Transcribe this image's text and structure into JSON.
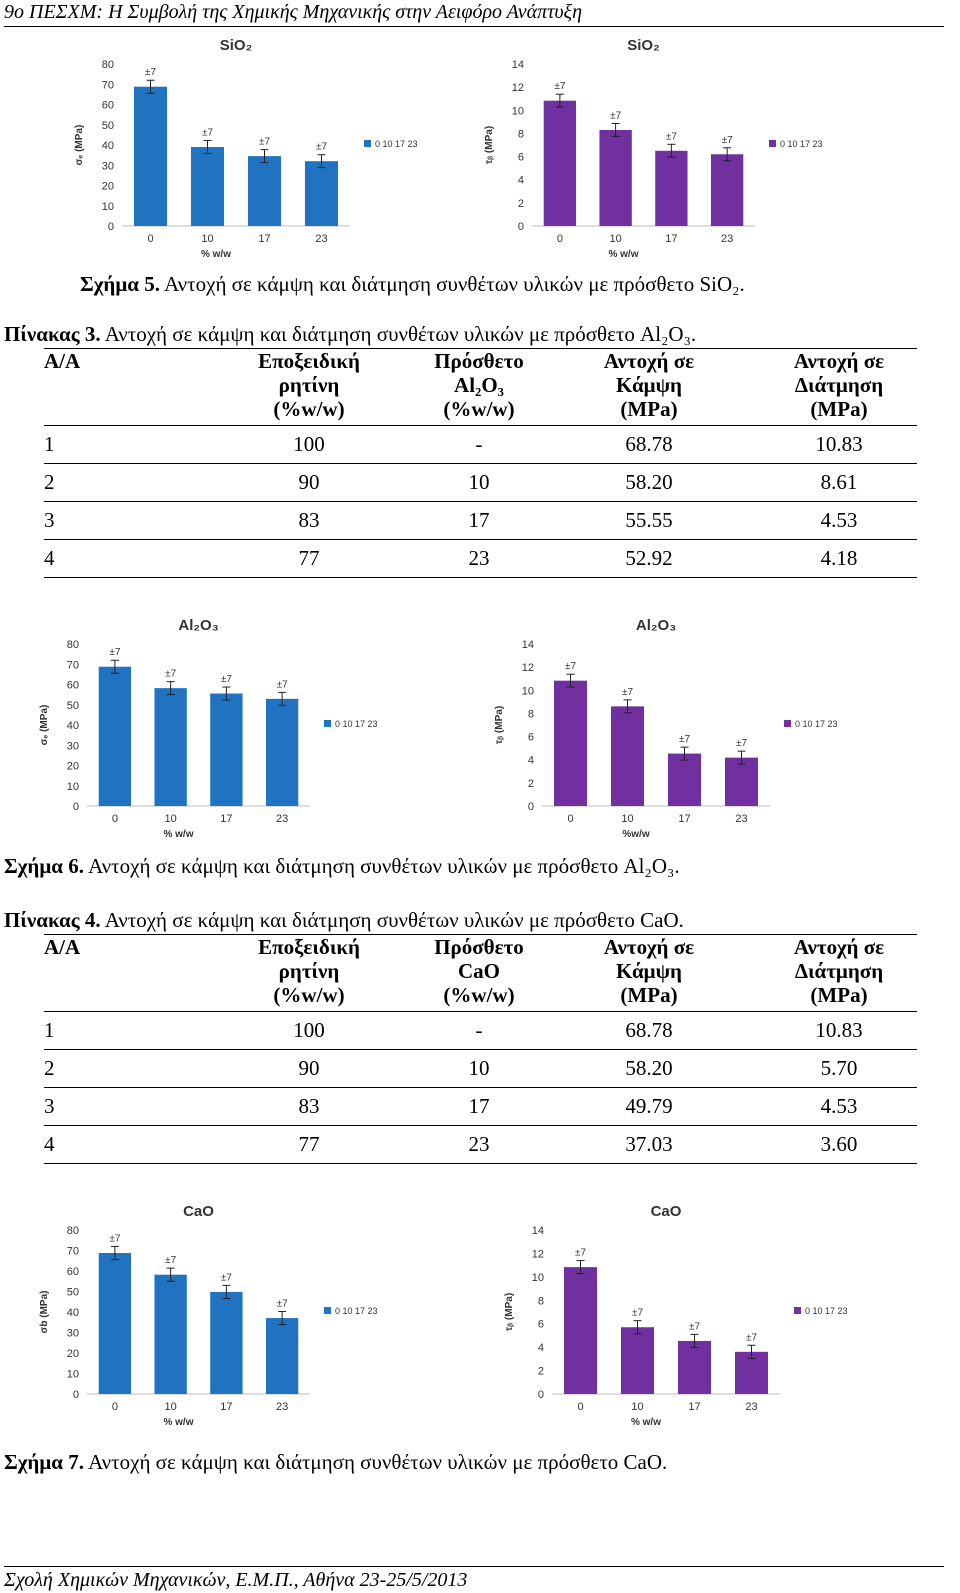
{
  "header": "9ο ΠΕΣΧΜ: Η Συμβολή της Χημικής Μηχανικής στην Αειφόρο Ανάπτυξη",
  "footer": "Σχολή Χημικών Μηχανικών, Ε.Μ.Π., Αθήνα 23-25/5/2013",
  "figures": [
    {
      "label": "Σχήμα 5.",
      "text": "Αντοχή σε κάμψη και διάτμηση συνθέτων υλικών με πρόσθετο SiO₂.",
      "charts": [
        {
          "title": "SiO₂",
          "color": "#1f73c1",
          "ylabel": "σₑ (MPa)",
          "xlabel": "% w/w",
          "legend": "0 10 17 23",
          "categories": [
            "0",
            "10",
            "17",
            "23"
          ],
          "values": [
            68.78,
            39,
            34.5,
            32
          ],
          "ylim": [
            0,
            80
          ],
          "ticks": [
            "0",
            "10",
            "20",
            "30",
            "40",
            "50",
            "60",
            "70",
            "80"
          ],
          "err_label": "±7"
        },
        {
          "title": "SiO₂",
          "color": "#7030a0",
          "ylabel": "τᵦ (MPa)",
          "xlabel": "% w/w",
          "legend": "0 10 17 23",
          "categories": [
            "0",
            "10",
            "17",
            "23"
          ],
          "values": [
            10.83,
            8.3,
            6.5,
            6.2
          ],
          "ylim": [
            0,
            14
          ],
          "ticks": [
            "0",
            "2",
            "4",
            "6",
            "8",
            "10",
            "12",
            "14"
          ],
          "err_label": "±7"
        }
      ]
    },
    {
      "label": "Σχήμα 6.",
      "text": "Αντοχή σε κάμψη και διάτμηση συνθέτων υλικών με πρόσθετο Al₂O₃.",
      "charts": [
        {
          "title": "Al₂O₃",
          "color": "#1f73c1",
          "ylabel": "σₑ (MPa)",
          "xlabel": "% w/w",
          "legend": "0 10 17 23",
          "categories": [
            "0",
            "10",
            "17",
            "23"
          ],
          "values": [
            68.78,
            58.2,
            55.55,
            52.92
          ],
          "ylim": [
            0,
            80
          ],
          "ticks": [
            "0",
            "10",
            "20",
            "30",
            "40",
            "50",
            "60",
            "70",
            "80"
          ],
          "err_label": "±7"
        },
        {
          "title": "Al₂O₃",
          "color": "#7030a0",
          "ylabel": "τᵦ (MPa)",
          "xlabel": "%w/w",
          "legend": "0 10 17 23",
          "categories": [
            "0",
            "10",
            "17",
            "23"
          ],
          "values": [
            10.83,
            8.61,
            4.53,
            4.18
          ],
          "ylim": [
            0,
            14
          ],
          "ticks": [
            "0",
            "2",
            "4",
            "6",
            "8",
            "10",
            "12",
            "14"
          ],
          "err_label": "±7"
        }
      ]
    },
    {
      "label": "Σχήμα 7.",
      "text": "Αντοχή σε κάμψη και διάτμηση συνθέτων υλικών με πρόσθετο CaO.",
      "charts": [
        {
          "title": "CaO",
          "color": "#1f73c1",
          "ylabel": "σb (MPa)",
          "xlabel": "% w/w",
          "legend": "0 10 17 23",
          "categories": [
            "0",
            "10",
            "17",
            "23"
          ],
          "values": [
            68.78,
            58.2,
            49.79,
            37.03
          ],
          "ylim": [
            0,
            80
          ],
          "ticks": [
            "0",
            "10",
            "20",
            "30",
            "40",
            "50",
            "60",
            "70",
            "80"
          ],
          "err_label": "±7"
        },
        {
          "title": "CaO",
          "color": "#7030a0",
          "ylabel": "τᵦ (MPa)",
          "xlabel": "% w/w",
          "legend": "0 10 17 23",
          "categories": [
            "0",
            "10",
            "17",
            "23"
          ],
          "values": [
            10.83,
            5.7,
            4.53,
            3.6
          ],
          "ylim": [
            0,
            14
          ],
          "ticks": [
            "0",
            "2",
            "4",
            "6",
            "8",
            "10",
            "12",
            "14"
          ],
          "err_label": "±7"
        }
      ]
    }
  ],
  "tables": [
    {
      "label": "Πίνακας 3.",
      "text": "Αντοχή σε κάμψη και διάτμηση συνθέτων υλικών με πρόσθετο Al₂O₃.",
      "headers": [
        [
          "Α/Α"
        ],
        [
          "Εποξειδική",
          "ρητίνη",
          "(%w/w)"
        ],
        [
          "Πρόσθετο",
          "Al₂O₃",
          "(%w/w)"
        ],
        [
          "Αντοχή σε",
          "Κάμψη",
          "(MPa)"
        ],
        [
          "Αντοχή σε",
          "Διάτμηση",
          "(MPa)"
        ]
      ],
      "rows": [
        [
          "1",
          "100",
          "-",
          "68.78",
          "10.83"
        ],
        [
          "2",
          "90",
          "10",
          "58.20",
          "8.61"
        ],
        [
          "3",
          "83",
          "17",
          "55.55",
          "4.53"
        ],
        [
          "4",
          "77",
          "23",
          "52.92",
          "4.18"
        ]
      ]
    },
    {
      "label": "Πίνακας 4.",
      "text": "Αντοχή σε κάμψη και διάτμηση συνθέτων υλικών με πρόσθετο CaO.",
      "headers": [
        [
          "Α/Α"
        ],
        [
          "Εποξειδική",
          "ρητίνη",
          "(%w/w)"
        ],
        [
          "Πρόσθετο",
          "CaO",
          "(%w/w)"
        ],
        [
          "Αντοχή σε",
          "Κάμψη",
          "(MPa)"
        ],
        [
          "Αντοχή σε",
          "Διάτμηση",
          "(MPa)"
        ]
      ],
      "rows": [
        [
          "1",
          "100",
          "-",
          "68.78",
          "10.83"
        ],
        [
          "2",
          "90",
          "10",
          "58.20",
          "5.70"
        ],
        [
          "3",
          "83",
          "17",
          "49.79",
          "4.53"
        ],
        [
          "4",
          "77",
          "23",
          "37.03",
          "3.60"
        ]
      ]
    }
  ],
  "chart_data": [
    {
      "type": "bar",
      "title": "SiO₂",
      "xlabel": "% w/w",
      "ylabel": "σₑ (MPa)",
      "categories": [
        "0",
        "10",
        "17",
        "23"
      ],
      "values": [
        68.78,
        39,
        34.5,
        32
      ],
      "ylim": [
        0,
        80
      ]
    },
    {
      "type": "bar",
      "title": "SiO₂",
      "xlabel": "% w/w",
      "ylabel": "τᵦ (MPa)",
      "categories": [
        "0",
        "10",
        "17",
        "23"
      ],
      "values": [
        10.83,
        8.3,
        6.5,
        6.2
      ],
      "ylim": [
        0,
        14
      ]
    },
    {
      "type": "bar",
      "title": "Al₂O₃",
      "xlabel": "% w/w",
      "ylabel": "σₑ (MPa)",
      "categories": [
        "0",
        "10",
        "17",
        "23"
      ],
      "values": [
        68.78,
        58.2,
        55.55,
        52.92
      ],
      "ylim": [
        0,
        80
      ]
    },
    {
      "type": "bar",
      "title": "Al₂O₃",
      "xlabel": "%w/w",
      "ylabel": "τᵦ (MPa)",
      "categories": [
        "0",
        "10",
        "17",
        "23"
      ],
      "values": [
        10.83,
        8.61,
        4.53,
        4.18
      ],
      "ylim": [
        0,
        14
      ]
    },
    {
      "type": "bar",
      "title": "CaO",
      "xlabel": "% w/w",
      "ylabel": "σb (MPa)",
      "categories": [
        "0",
        "10",
        "17",
        "23"
      ],
      "values": [
        68.78,
        58.2,
        49.79,
        37.03
      ],
      "ylim": [
        0,
        80
      ]
    },
    {
      "type": "bar",
      "title": "CaO",
      "xlabel": "% w/w",
      "ylabel": "τᵦ (MPa)",
      "categories": [
        "0",
        "10",
        "17",
        "23"
      ],
      "values": [
        10.83,
        5.7,
        4.53,
        3.6
      ],
      "ylim": [
        0,
        14
      ]
    }
  ]
}
